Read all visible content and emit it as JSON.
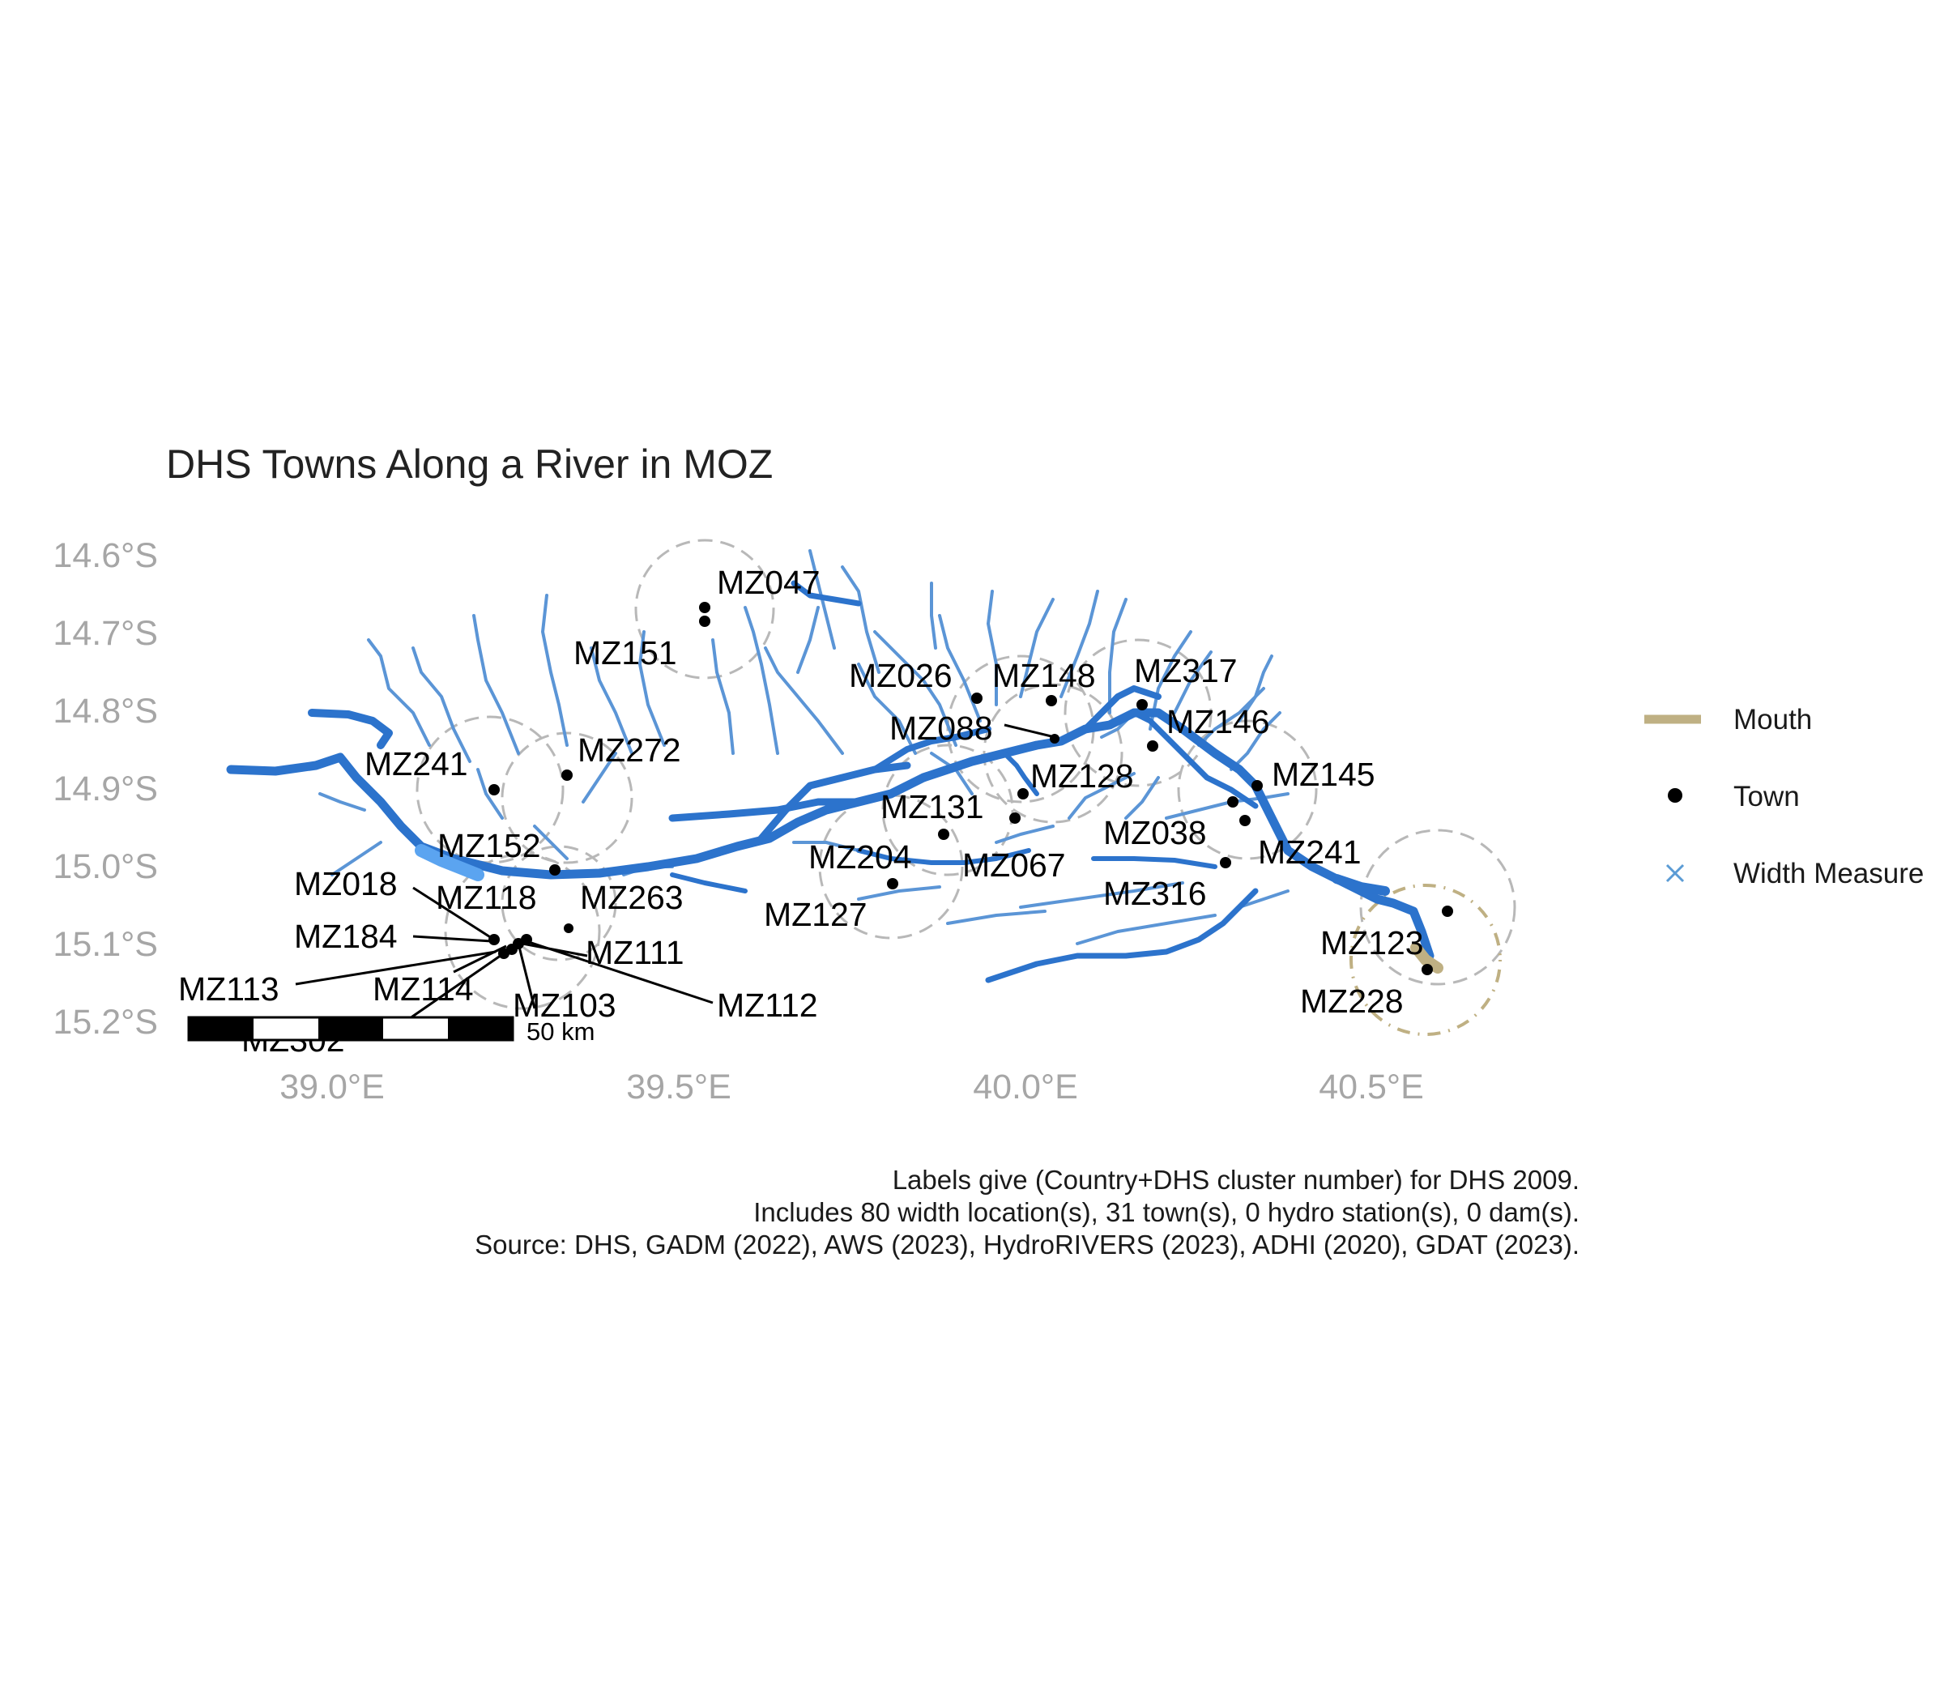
{
  "title": "DHS Towns Along a River in MOZ",
  "chart_data": {
    "type": "map",
    "y_axis": {
      "ticks": [
        14.6,
        14.7,
        14.8,
        14.9,
        15.0,
        15.1,
        15.2
      ],
      "tick_labels": [
        "14.6°S",
        "14.7°S",
        "14.8°S",
        "14.9°S",
        "15.0°S",
        "15.1°S",
        "15.2°S"
      ]
    },
    "x_axis": {
      "ticks": [
        39.0,
        39.5,
        40.0,
        40.5
      ],
      "tick_labels": [
        "39.0°E",
        "39.5°E",
        "40.0°E",
        "40.5°E"
      ]
    },
    "towns": [
      {
        "label": "MZ047",
        "lon": 39.53,
        "lat": 14.67
      },
      {
        "label": "",
        "lon": 39.53,
        "lat": 14.685
      },
      {
        "label": "MZ151",
        "lon": 39.5,
        "lat": 14.75
      },
      {
        "label": "MZ026",
        "lon": 39.94,
        "lat": 14.785
      },
      {
        "label": "MZ148",
        "lon": 40.05,
        "lat": 14.79
      },
      {
        "label": "MZ317",
        "lon": 40.17,
        "lat": 14.795
      },
      {
        "label": "MZ088",
        "lon": 40.04,
        "lat": 14.84
      },
      {
        "label": "MZ146",
        "lon": 40.19,
        "lat": 14.845
      },
      {
        "label": "MZ241",
        "lon": 39.24,
        "lat": 14.9
      },
      {
        "label": "MZ272",
        "lon": 39.34,
        "lat": 14.883
      },
      {
        "label": "MZ128",
        "lon": 40.0,
        "lat": 14.905
      },
      {
        "label": "MZ145",
        "lon": 40.34,
        "lat": 14.895
      },
      {
        "label": "MZ131",
        "lon": 39.99,
        "lat": 14.935
      },
      {
        "label": "",
        "lon": 40.31,
        "lat": 14.915
      },
      {
        "label": "",
        "lon": 40.32,
        "lat": 14.94
      },
      {
        "label": "MZ038",
        "lon": 40.29,
        "lat": 14.995
      },
      {
        "label": "MZ241",
        "lon": 40.34,
        "lat": 14.96
      },
      {
        "label": "MZ152",
        "lon": 39.32,
        "lat": 15.005
      },
      {
        "label": "MZ067",
        "lon": 39.88,
        "lat": 14.96
      },
      {
        "label": "MZ204",
        "lon": 39.81,
        "lat": 15.022
      },
      {
        "label": "MZ316",
        "lon": 40.3,
        "lat": 15.0
      },
      {
        "label": "MZ118",
        "lon": 39.25,
        "lat": 15.095
      },
      {
        "label": "MZ263",
        "lon": 39.33,
        "lat": 15.077
      },
      {
        "label": "MZ018",
        "lon": 39.24,
        "lat": 15.097
      },
      {
        "label": "MZ184",
        "lon": 39.245,
        "lat": 15.1
      },
      {
        "label": "MZ113",
        "lon": 39.26,
        "lat": 15.11
      },
      {
        "label": "MZ114",
        "lon": 39.265,
        "lat": 15.11
      },
      {
        "label": "MZ103",
        "lon": 39.27,
        "lat": 15.105
      },
      {
        "label": "MZ111",
        "lon": 39.28,
        "lat": 15.1
      },
      {
        "label": "MZ112",
        "lon": 39.285,
        "lat": 15.1
      },
      {
        "label": "MZ302",
        "lon": 39.26,
        "lat": 15.115
      },
      {
        "label": "MZ127",
        "lon": 39.75,
        "lat": 15.06
      },
      {
        "label": "MZ123",
        "lon": 40.62,
        "lat": 15.06
      },
      {
        "label": "MZ228",
        "lon": 40.58,
        "lat": 15.14
      }
    ],
    "legend": {
      "position": "right",
      "entries": [
        {
          "label": "Mouth",
          "symbol": "line",
          "color": "#bfb083"
        },
        {
          "label": "Town",
          "symbol": "point",
          "color": "#000000"
        },
        {
          "label": "Width Measure",
          "symbol": "cross",
          "color": "#5b9bd5"
        }
      ]
    },
    "scale_bar": {
      "label": "50 km"
    },
    "colors": {
      "main_river": "#2c73cc",
      "tributary": "#5b95d6",
      "wide_section": "#5ba4f0",
      "buffer": "#b8b8b8",
      "mouth": "#bfb083"
    }
  },
  "caption": {
    "line1": "Labels give (Country+DHS cluster number) for DHS 2009.",
    "line2": "Includes 80 width location(s), 31 town(s), 0 hydro station(s), 0 dam(s).",
    "line3": "Source: DHS, GADM (2022), AWS (2023), HydroRIVERS (2023), ADHI (2020), GDAT (2023)."
  }
}
